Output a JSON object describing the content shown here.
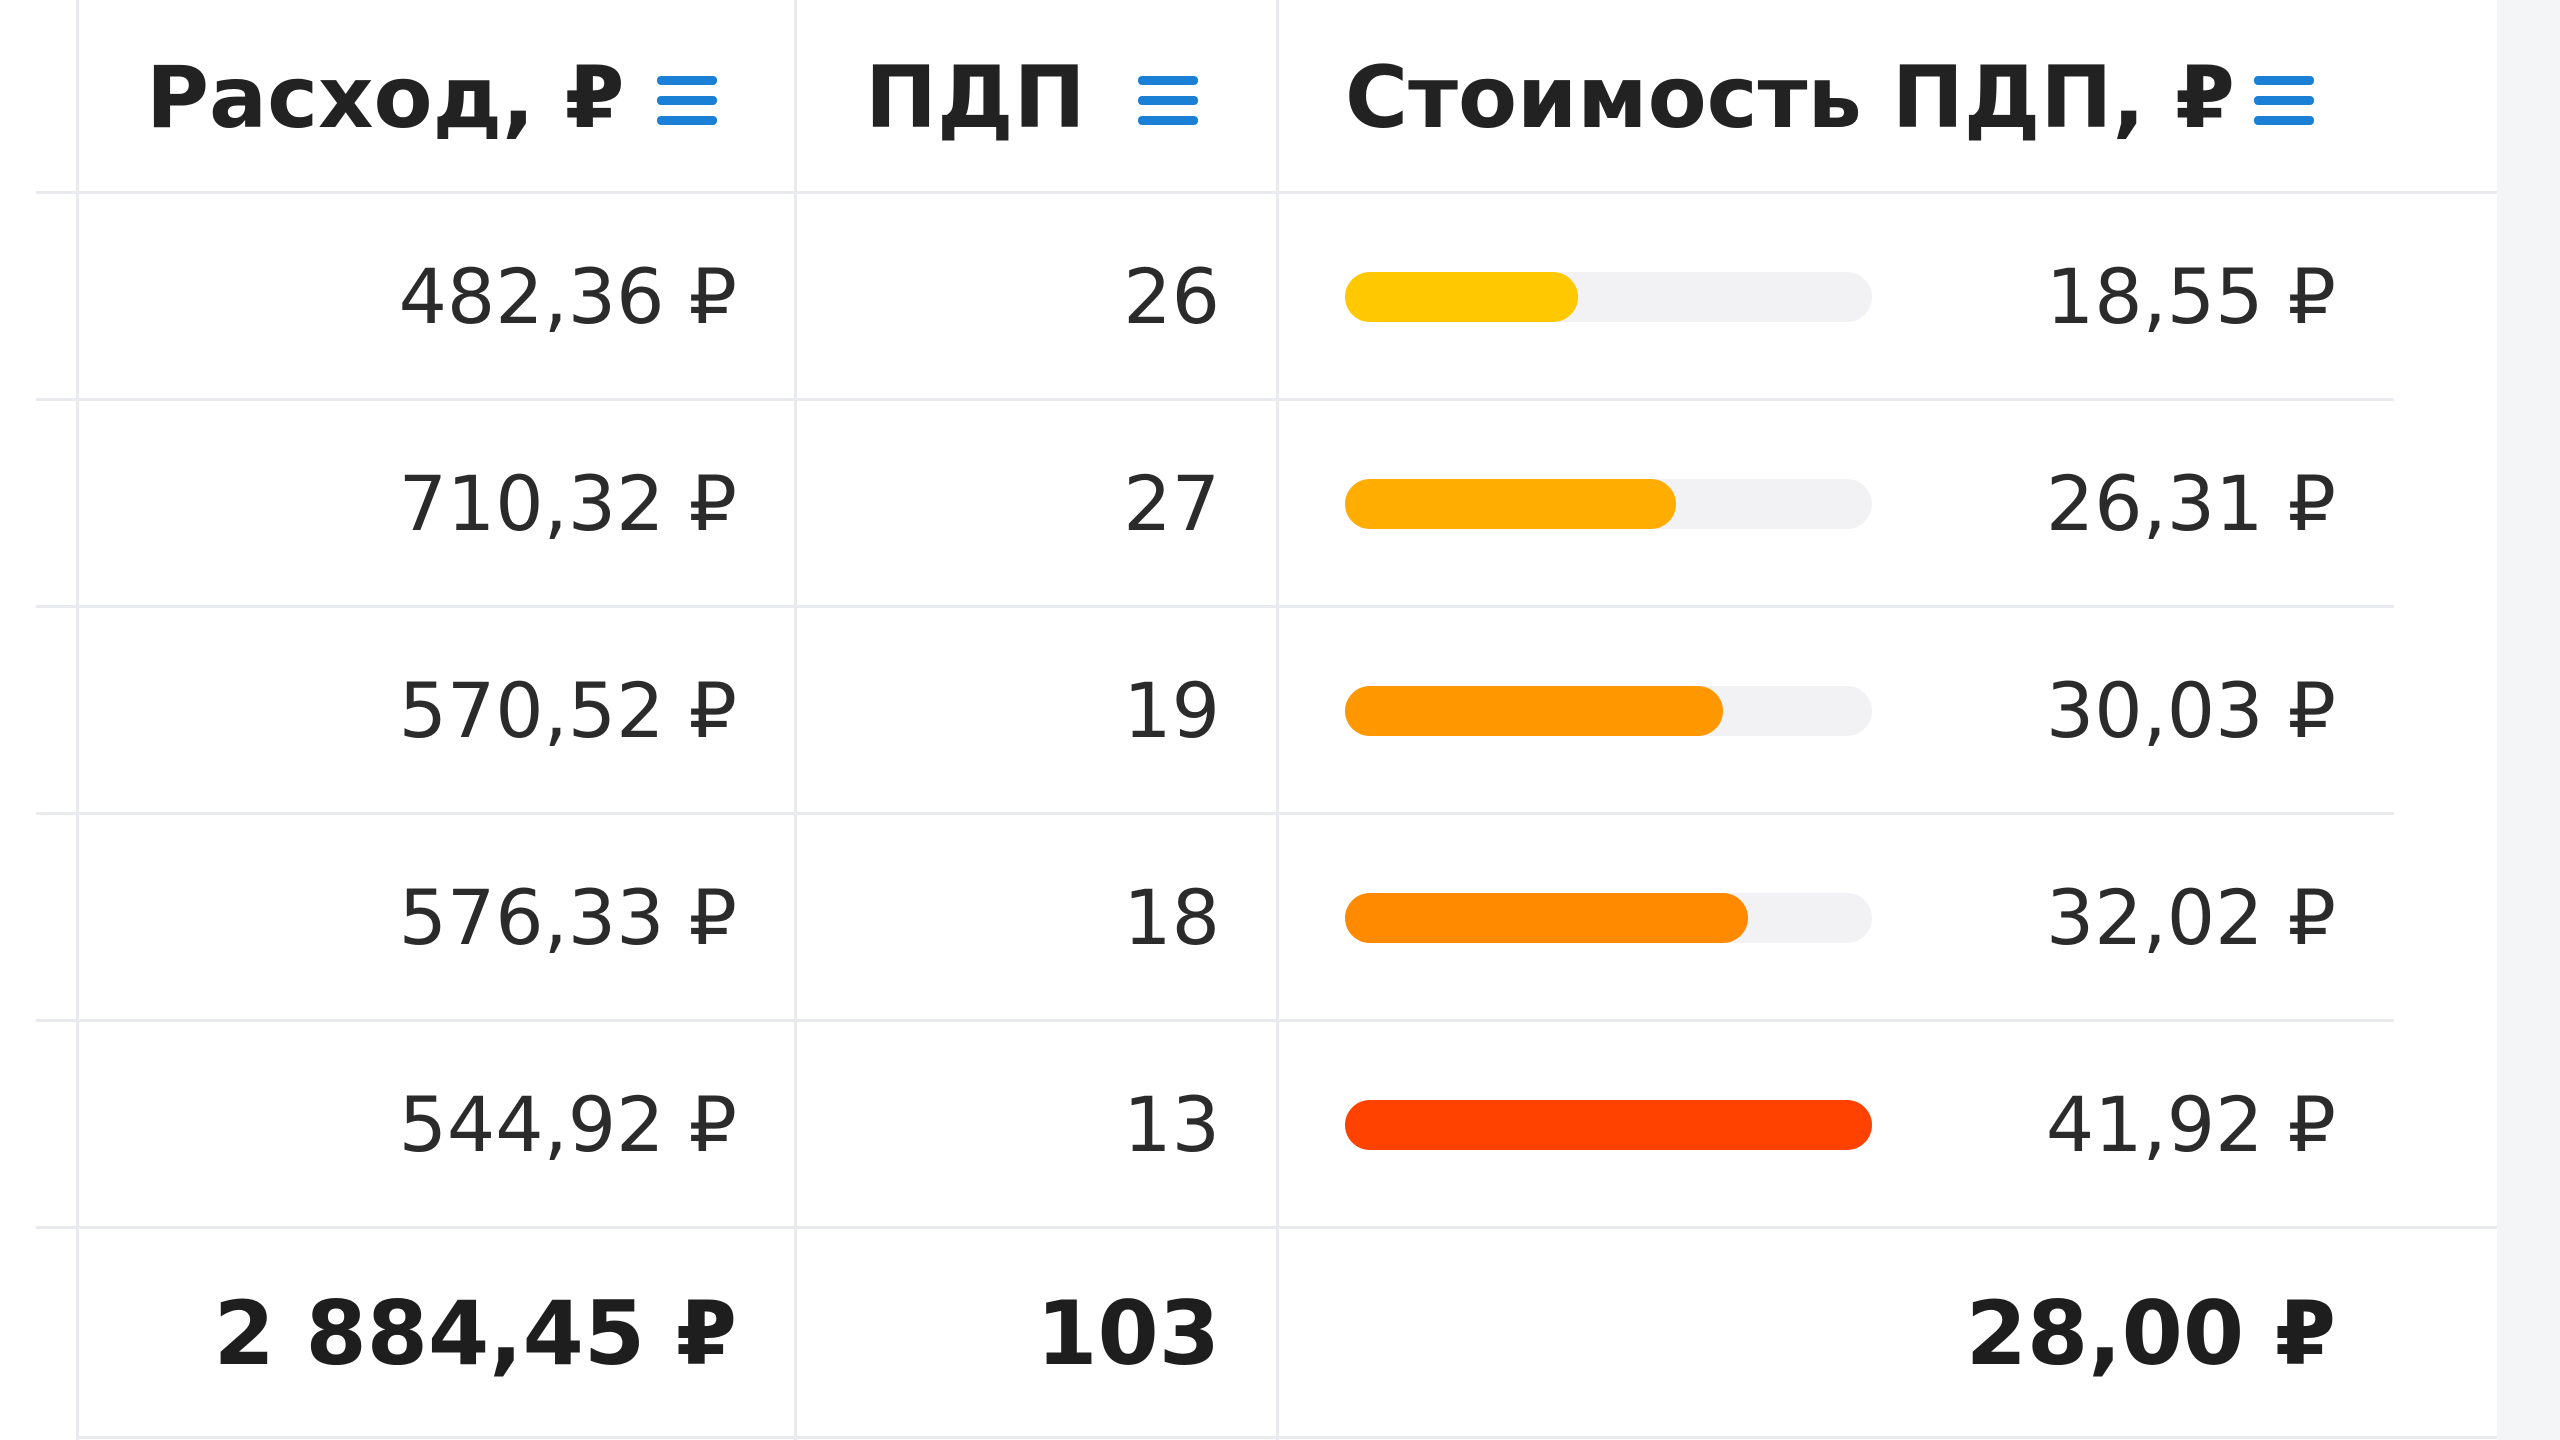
{
  "table": {
    "header": [
      "Расход, ₽",
      "ПДП",
      "Стоимость ПДП, ₽"
    ],
    "rows": [
      {
        "spend": "482,36 ₽",
        "pdp": "26",
        "cost": "18,55 ₽",
        "bar_color": "#ffc800"
      },
      {
        "spend": "710,32 ₽",
        "pdp": "27",
        "cost": "26,31 ₽",
        "bar_color": "#ffad00"
      },
      {
        "spend": "570,52 ₽",
        "pdp": "19",
        "cost": "30,03 ₽",
        "bar_color": "#ff9800"
      },
      {
        "spend": "576,33 ₽",
        "pdp": "18",
        "cost": "32,02 ₽",
        "bar_color": "#ff8a00"
      },
      {
        "spend": "544,92 ₽",
        "pdp": "13",
        "cost": "41,92 ₽",
        "bar_color": "#ff4200"
      }
    ],
    "footer": {
      "spend": "2 884,45 ₽",
      "pdp": "103",
      "cost": "28,00 ₽"
    },
    "bar_track_color": "#f2f2f4"
  }
}
